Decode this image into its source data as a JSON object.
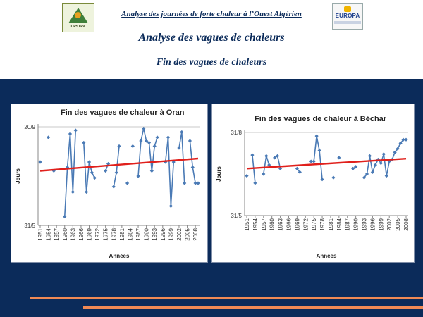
{
  "header": {
    "subject": "Analyse des journées de forte chaleur à l’Ouest Algérien",
    "title": "Analyse des vagues de chaleurs",
    "subtitle": "Fin des vagues de chaleurs",
    "logo_left_text": "CRSTRA",
    "logo_right_text": "EUROPA"
  },
  "colors": {
    "background": "#0b2b5a",
    "series": "#4a7ab5",
    "trend": "#e0201c",
    "stripe": "#f08a55"
  },
  "chart_data": [
    {
      "type": "line",
      "title": "Fin des vagues de chaleur à Oran",
      "xlabel": "Années",
      "ylabel": "Jours",
      "x_ticks": [
        "1951",
        "1954",
        "1957",
        "1960",
        "1963",
        "1966",
        "1969",
        "1972",
        "1975",
        "1978",
        "1981",
        "1984",
        "1987",
        "1990",
        "1993",
        "1996",
        "1999",
        "2002",
        "2005",
        "2008"
      ],
      "y_ticks": [
        "20/9",
        "31/5"
      ],
      "y_range_days": [
        0,
        112
      ],
      "y_tick_days": [
        112,
        0
      ],
      "x_range": [
        1951,
        2009
      ],
      "grid": true,
      "series": [
        {
          "points": [
            [
              1951,
              72
            ],
            [
              1954,
              100
            ],
            [
              1956,
              62
            ],
            [
              1960,
              10
            ],
            [
              1961,
              66
            ],
            [
              1962,
              104
            ],
            [
              1963,
              38
            ],
            [
              1964,
              108
            ],
            [
              1967,
              94
            ],
            [
              1968,
              38
            ],
            [
              1969,
              72
            ],
            [
              1970,
              60
            ],
            [
              1971,
              54
            ],
            [
              1975,
              62
            ],
            [
              1976,
              70
            ],
            [
              1978,
              44
            ],
            [
              1979,
              60
            ],
            [
              1980,
              90
            ],
            [
              1983,
              48
            ],
            [
              1985,
              90
            ],
            [
              1987,
              56
            ],
            [
              1988,
              96
            ],
            [
              1989,
              110
            ],
            [
              1990,
              96
            ],
            [
              1991,
              94
            ],
            [
              1992,
              62
            ],
            [
              1993,
              90
            ],
            [
              1994,
              100
            ],
            [
              1997,
              72
            ],
            [
              1998,
              100
            ],
            [
              1999,
              22
            ],
            [
              2000,
              72
            ],
            [
              2002,
              88
            ],
            [
              2003,
              106
            ],
            [
              2004,
              48
            ],
            [
              2006,
              96
            ],
            [
              2007,
              66
            ],
            [
              2008,
              48
            ],
            [
              2009,
              48
            ]
          ]
        }
      ],
      "trend": [
        [
          1951,
          62
        ],
        [
          2009,
          76
        ]
      ]
    },
    {
      "type": "line",
      "title": "Fin des vagues de chaleur à Béchar",
      "xlabel": "Années",
      "ylabel": "Jours",
      "x_ticks": [
        "1951",
        "1954",
        "1957",
        "1960",
        "1963",
        "1966",
        "1969",
        "1972",
        "1975",
        "1978",
        "1981",
        "1984",
        "1987",
        "1990",
        "1993",
        "1996",
        "1999",
        "2002",
        "2005",
        "2008"
      ],
      "y_ticks": [
        "31/8",
        "31/5"
      ],
      "y_range_days": [
        0,
        92
      ],
      "y_tick_days": [
        92,
        0
      ],
      "x_range": [
        1951,
        2008
      ],
      "grid": true,
      "series": [
        {
          "points": [
            [
              1951,
              44
            ],
            [
              1953,
              67
            ],
            [
              1954,
              36
            ],
            [
              1957,
              46
            ],
            [
              1958,
              66
            ],
            [
              1959,
              56
            ],
            [
              1961,
              64
            ],
            [
              1962,
              66
            ],
            [
              1963,
              52
            ],
            [
              1969,
              52
            ],
            [
              1970,
              48
            ],
            [
              1974,
              60
            ],
            [
              1975,
              60
            ],
            [
              1976,
              88
            ],
            [
              1977,
              72
            ],
            [
              1978,
              40
            ],
            [
              1982,
              42
            ],
            [
              1984,
              64
            ],
            [
              1989,
              52
            ],
            [
              1990,
              54
            ],
            [
              1993,
              42
            ],
            [
              1994,
              46
            ],
            [
              1995,
              66
            ],
            [
              1996,
              48
            ],
            [
              1997,
              56
            ],
            [
              1998,
              62
            ],
            [
              1999,
              58
            ],
            [
              2000,
              68
            ],
            [
              2001,
              44
            ],
            [
              2002,
              60
            ],
            [
              2003,
              62
            ],
            [
              2004,
              70
            ],
            [
              2005,
              74
            ],
            [
              2006,
              80
            ],
            [
              2007,
              84
            ],
            [
              2008,
              84
            ]
          ]
        }
      ],
      "trend": [
        [
          1951,
          52
        ],
        [
          2008,
          63
        ]
      ]
    }
  ]
}
